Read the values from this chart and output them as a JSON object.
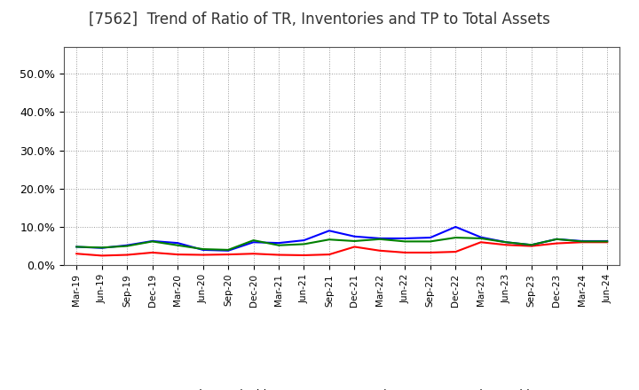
{
  "title": "[7562]  Trend of Ratio of TR, Inventories and TP to Total Assets",
  "x_labels": [
    "Mar-19",
    "Jun-19",
    "Sep-19",
    "Dec-19",
    "Mar-20",
    "Jun-20",
    "Sep-20",
    "Dec-20",
    "Mar-21",
    "Jun-21",
    "Sep-21",
    "Dec-21",
    "Mar-22",
    "Jun-22",
    "Sep-22",
    "Dec-22",
    "Mar-23",
    "Jun-23",
    "Sep-23",
    "Dec-23",
    "Mar-24",
    "Jun-24"
  ],
  "trade_receivables": [
    0.03,
    0.025,
    0.027,
    0.033,
    0.028,
    0.027,
    0.028,
    0.03,
    0.027,
    0.026,
    0.028,
    0.048,
    0.038,
    0.033,
    0.033,
    0.035,
    0.06,
    0.053,
    0.05,
    0.057,
    0.06,
    0.06
  ],
  "inventories": [
    0.048,
    0.045,
    0.052,
    0.063,
    0.058,
    0.04,
    0.038,
    0.06,
    0.058,
    0.065,
    0.09,
    0.075,
    0.07,
    0.07,
    0.072,
    0.1,
    0.073,
    0.06,
    0.053,
    0.068,
    0.063,
    0.063
  ],
  "trade_payables": [
    0.048,
    0.046,
    0.05,
    0.062,
    0.052,
    0.042,
    0.04,
    0.065,
    0.052,
    0.055,
    0.067,
    0.063,
    0.068,
    0.062,
    0.062,
    0.072,
    0.07,
    0.06,
    0.053,
    0.068,
    0.062,
    0.062
  ],
  "tr_color": "#ff0000",
  "inv_color": "#0000ff",
  "tp_color": "#008000",
  "ylim": [
    0.0,
    0.57
  ],
  "yticks": [
    0.0,
    0.1,
    0.2,
    0.3,
    0.4,
    0.5
  ],
  "background_color": "#ffffff",
  "grid_color": "#999999",
  "title_fontsize": 12
}
